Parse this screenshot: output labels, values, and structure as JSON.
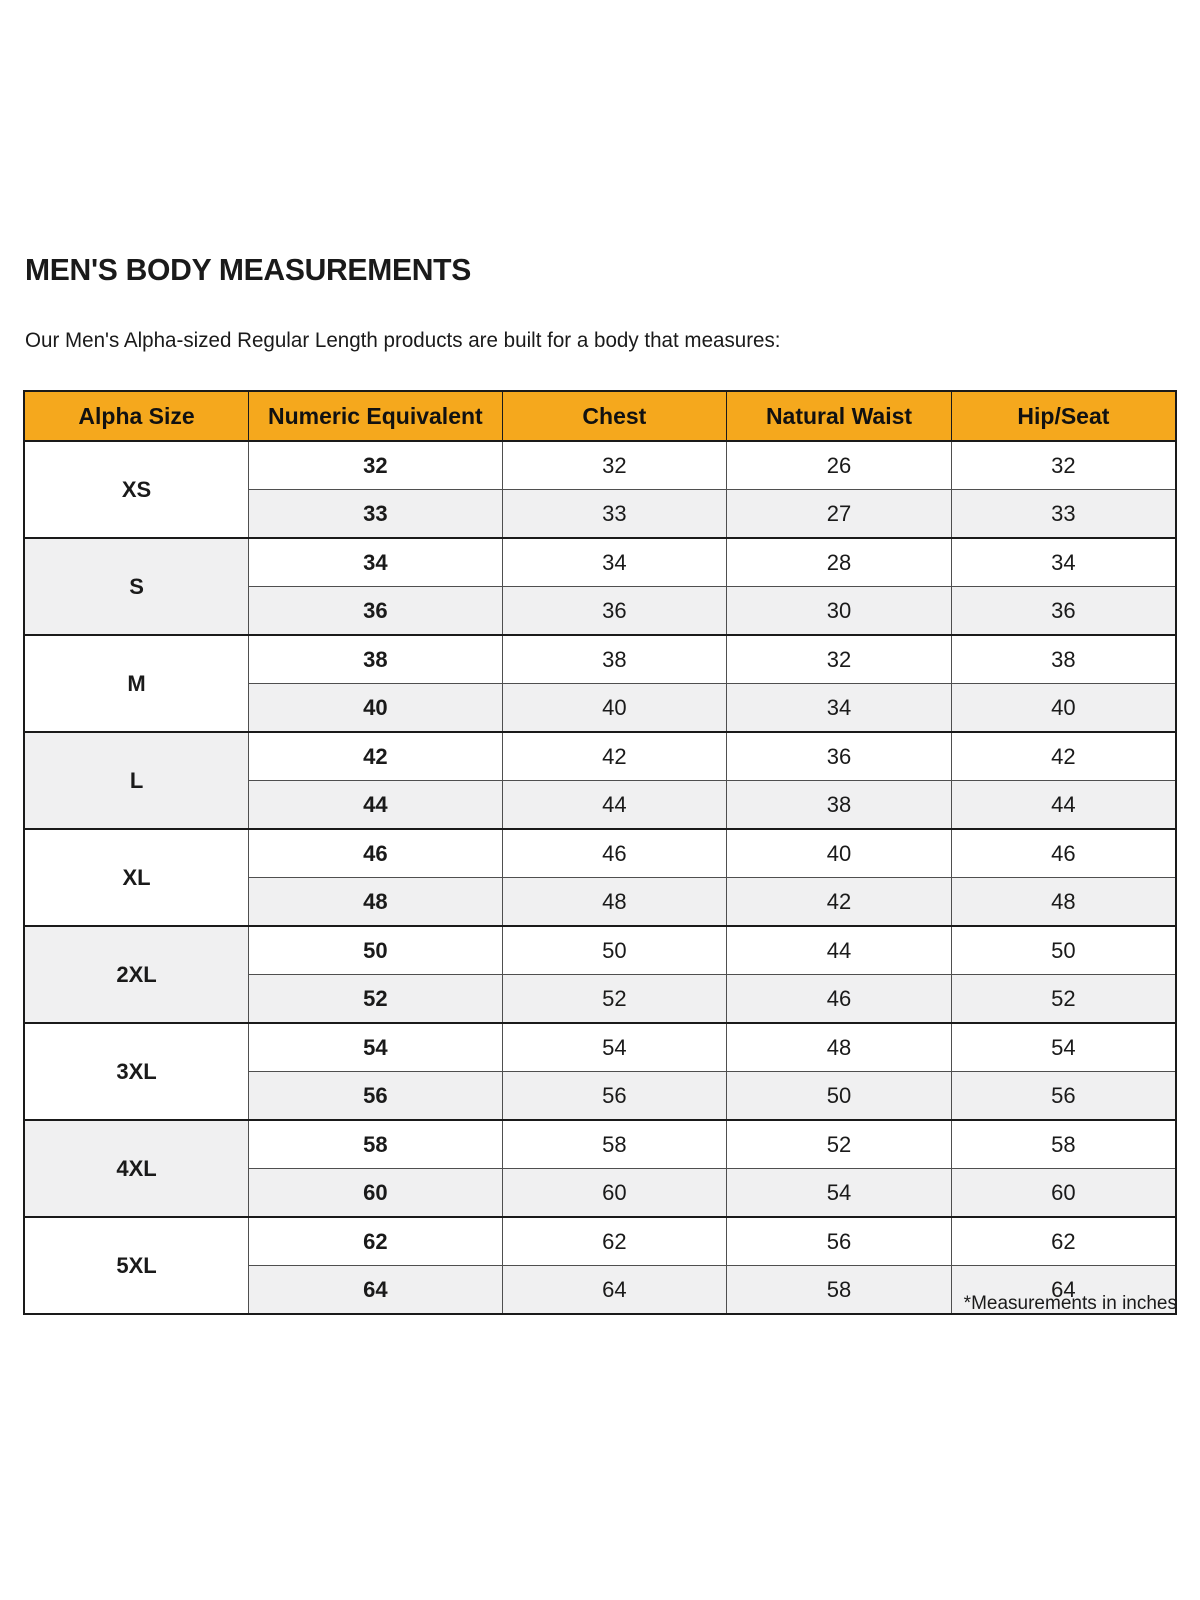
{
  "page": {
    "title": "MEN'S BODY MEASUREMENTS",
    "subtitle": "Our Men's Alpha-sized Regular Length products are built for a body that measures:",
    "footnote": "*Measurements in inches"
  },
  "colors": {
    "header_bg": "#F5A81D",
    "row_alt_bg": "#F0F0F1",
    "border_heavy": "#1A1A1A",
    "border_light": "#4F4F4F",
    "text": "#1A1A1A"
  },
  "table": {
    "columns": [
      "Alpha Size",
      "Numeric Equivalent",
      "Chest",
      "Natural Waist",
      "Hip/Seat"
    ],
    "groups": [
      {
        "alpha": "XS",
        "rows": [
          [
            "32",
            "32",
            "26",
            "32"
          ],
          [
            "33",
            "33",
            "27",
            "33"
          ]
        ]
      },
      {
        "alpha": "S",
        "rows": [
          [
            "34",
            "34",
            "28",
            "34"
          ],
          [
            "36",
            "36",
            "30",
            "36"
          ]
        ]
      },
      {
        "alpha": "M",
        "rows": [
          [
            "38",
            "38",
            "32",
            "38"
          ],
          [
            "40",
            "40",
            "34",
            "40"
          ]
        ]
      },
      {
        "alpha": "L",
        "rows": [
          [
            "42",
            "42",
            "36",
            "42"
          ],
          [
            "44",
            "44",
            "38",
            "44"
          ]
        ]
      },
      {
        "alpha": "XL",
        "rows": [
          [
            "46",
            "46",
            "40",
            "46"
          ],
          [
            "48",
            "48",
            "42",
            "48"
          ]
        ]
      },
      {
        "alpha": "2XL",
        "rows": [
          [
            "50",
            "50",
            "44",
            "50"
          ],
          [
            "52",
            "52",
            "46",
            "52"
          ]
        ]
      },
      {
        "alpha": "3XL",
        "rows": [
          [
            "54",
            "54",
            "48",
            "54"
          ],
          [
            "56",
            "56",
            "50",
            "56"
          ]
        ]
      },
      {
        "alpha": "4XL",
        "rows": [
          [
            "58",
            "58",
            "52",
            "58"
          ],
          [
            "60",
            "60",
            "54",
            "60"
          ]
        ]
      },
      {
        "alpha": "5XL",
        "rows": [
          [
            "62",
            "62",
            "56",
            "62"
          ],
          [
            "64",
            "64",
            "58",
            "64"
          ]
        ]
      }
    ]
  }
}
